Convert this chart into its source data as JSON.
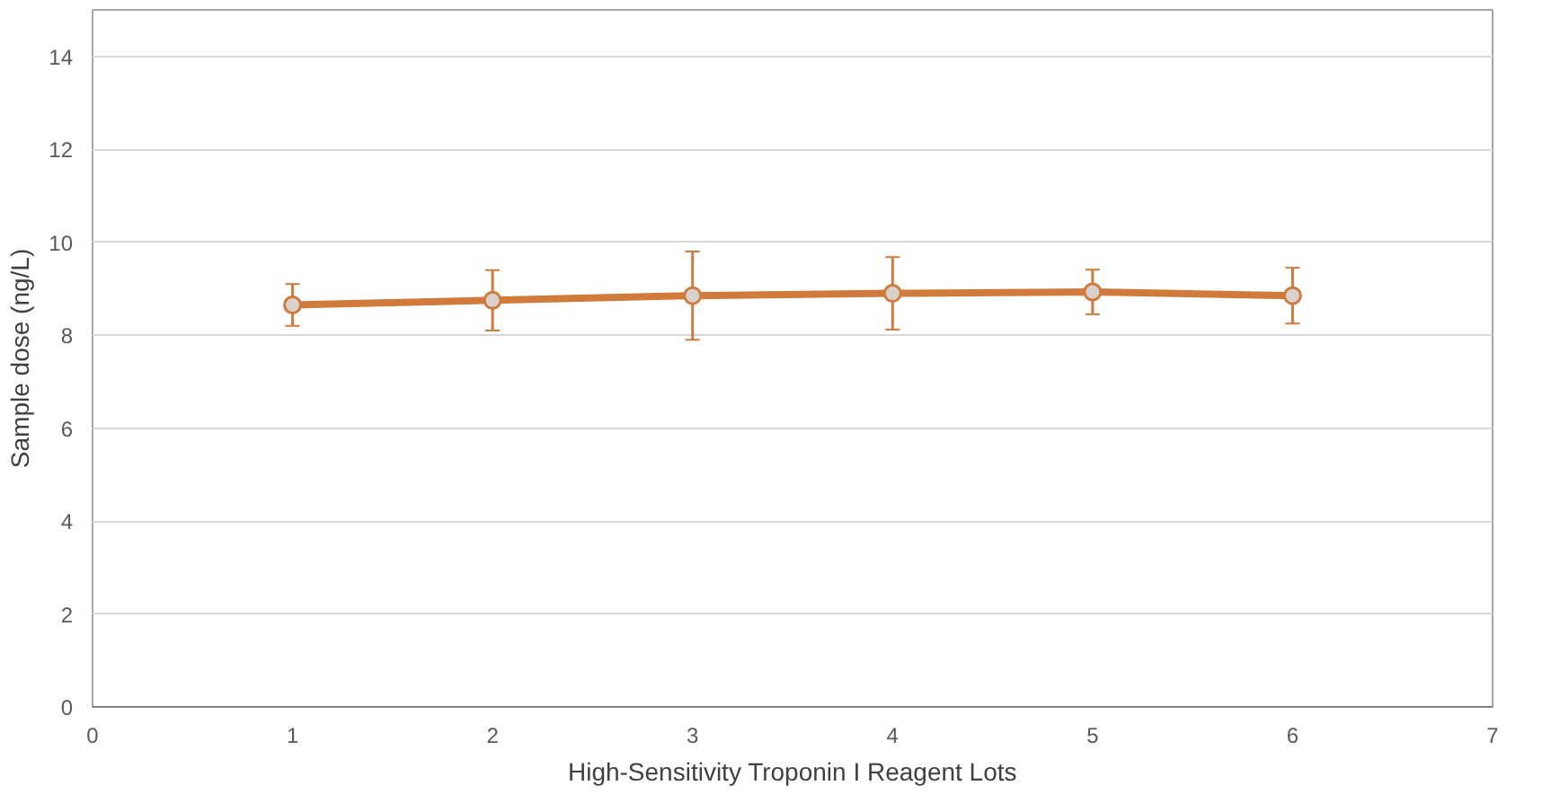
{
  "chart_data": {
    "type": "line",
    "xlabel": "High-Sensitivity Troponin I Reagent Lots",
    "ylabel": "Sample dose (ng/L)",
    "x": [
      1,
      2,
      3,
      4,
      5,
      6
    ],
    "series": [
      {
        "color": "#d07a3c",
        "values": [
          8.65,
          8.75,
          8.85,
          8.9,
          8.93,
          8.85
        ],
        "errors": [
          0.45,
          0.65,
          0.95,
          0.78,
          0.48,
          0.6
        ]
      }
    ],
    "xlim": [
      0,
      7
    ],
    "xticks": [
      0,
      1,
      2,
      3,
      4,
      5,
      6,
      7
    ],
    "ylim": [
      0,
      15
    ],
    "yticks": [
      0,
      2,
      4,
      6,
      8,
      10,
      12,
      14
    ],
    "grid": "y",
    "marker": "circle",
    "line_style": "solid"
  }
}
